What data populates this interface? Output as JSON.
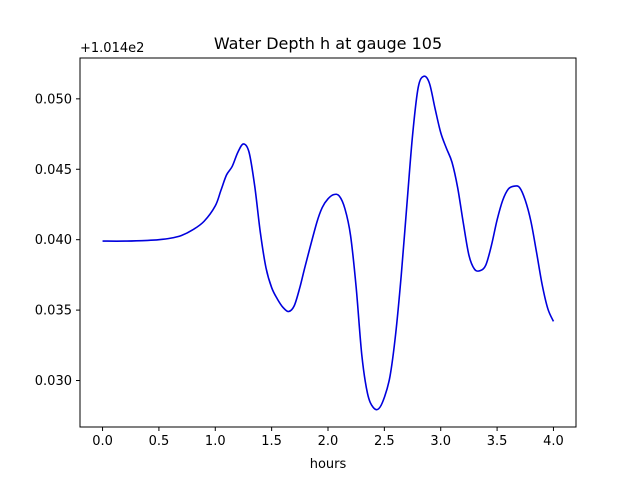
{
  "chart_data": {
    "type": "line",
    "title": "Water Depth h at gauge 105",
    "xlabel": "hours",
    "ylabel": "",
    "y_offset_label": "+1.014e2",
    "xlim": [
      -0.2,
      4.2
    ],
    "ylim": [
      0.0267,
      0.0529
    ],
    "grid": false,
    "x_ticks": [
      0.0,
      0.5,
      1.0,
      1.5,
      2.0,
      2.5,
      3.0,
      3.5,
      4.0
    ],
    "x_tick_labels": [
      "0.0",
      "0.5",
      "1.0",
      "1.5",
      "2.0",
      "2.5",
      "3.0",
      "3.5",
      "4.0"
    ],
    "y_ticks": [
      0.03,
      0.035,
      0.04,
      0.045,
      0.05
    ],
    "y_tick_labels": [
      "0.030",
      "0.035",
      "0.040",
      "0.045",
      "0.050"
    ],
    "series": [
      {
        "color": "#0000dd",
        "x": [
          0.0,
          0.2,
          0.4,
          0.5,
          0.6,
          0.7,
          0.8,
          0.9,
          1.0,
          1.05,
          1.1,
          1.15,
          1.2,
          1.25,
          1.3,
          1.35,
          1.4,
          1.45,
          1.5,
          1.55,
          1.6,
          1.65,
          1.7,
          1.75,
          1.8,
          1.9,
          1.95,
          2.0,
          2.05,
          2.1,
          2.15,
          2.2,
          2.25,
          2.3,
          2.35,
          2.4,
          2.45,
          2.5,
          2.55,
          2.6,
          2.65,
          2.7,
          2.75,
          2.8,
          2.85,
          2.9,
          2.95,
          3.0,
          3.05,
          3.1,
          3.15,
          3.2,
          3.25,
          3.3,
          3.35,
          3.4,
          3.45,
          3.5,
          3.55,
          3.6,
          3.65,
          3.7,
          3.75,
          3.8,
          3.85,
          3.9,
          3.95,
          4.0
        ],
        "y": [
          0.0399,
          0.0399,
          0.03995,
          0.04,
          0.0401,
          0.0403,
          0.0407,
          0.0413,
          0.0424,
          0.0435,
          0.0446,
          0.0452,
          0.0462,
          0.0468,
          0.0462,
          0.0438,
          0.0405,
          0.038,
          0.0366,
          0.0358,
          0.0352,
          0.0349,
          0.0353,
          0.0366,
          0.0382,
          0.0412,
          0.0423,
          0.0429,
          0.0432,
          0.0431,
          0.0422,
          0.0403,
          0.0366,
          0.0318,
          0.0291,
          0.0281,
          0.028,
          0.0288,
          0.0303,
          0.0333,
          0.0375,
          0.0425,
          0.0474,
          0.0508,
          0.0516,
          0.0511,
          0.0493,
          0.0476,
          0.0465,
          0.0455,
          0.0437,
          0.0412,
          0.0389,
          0.0379,
          0.0378,
          0.0382,
          0.0396,
          0.0414,
          0.0428,
          0.0436,
          0.0438,
          0.0437,
          0.0428,
          0.0413,
          0.0391,
          0.0368,
          0.0351,
          0.0342
        ]
      }
    ]
  }
}
